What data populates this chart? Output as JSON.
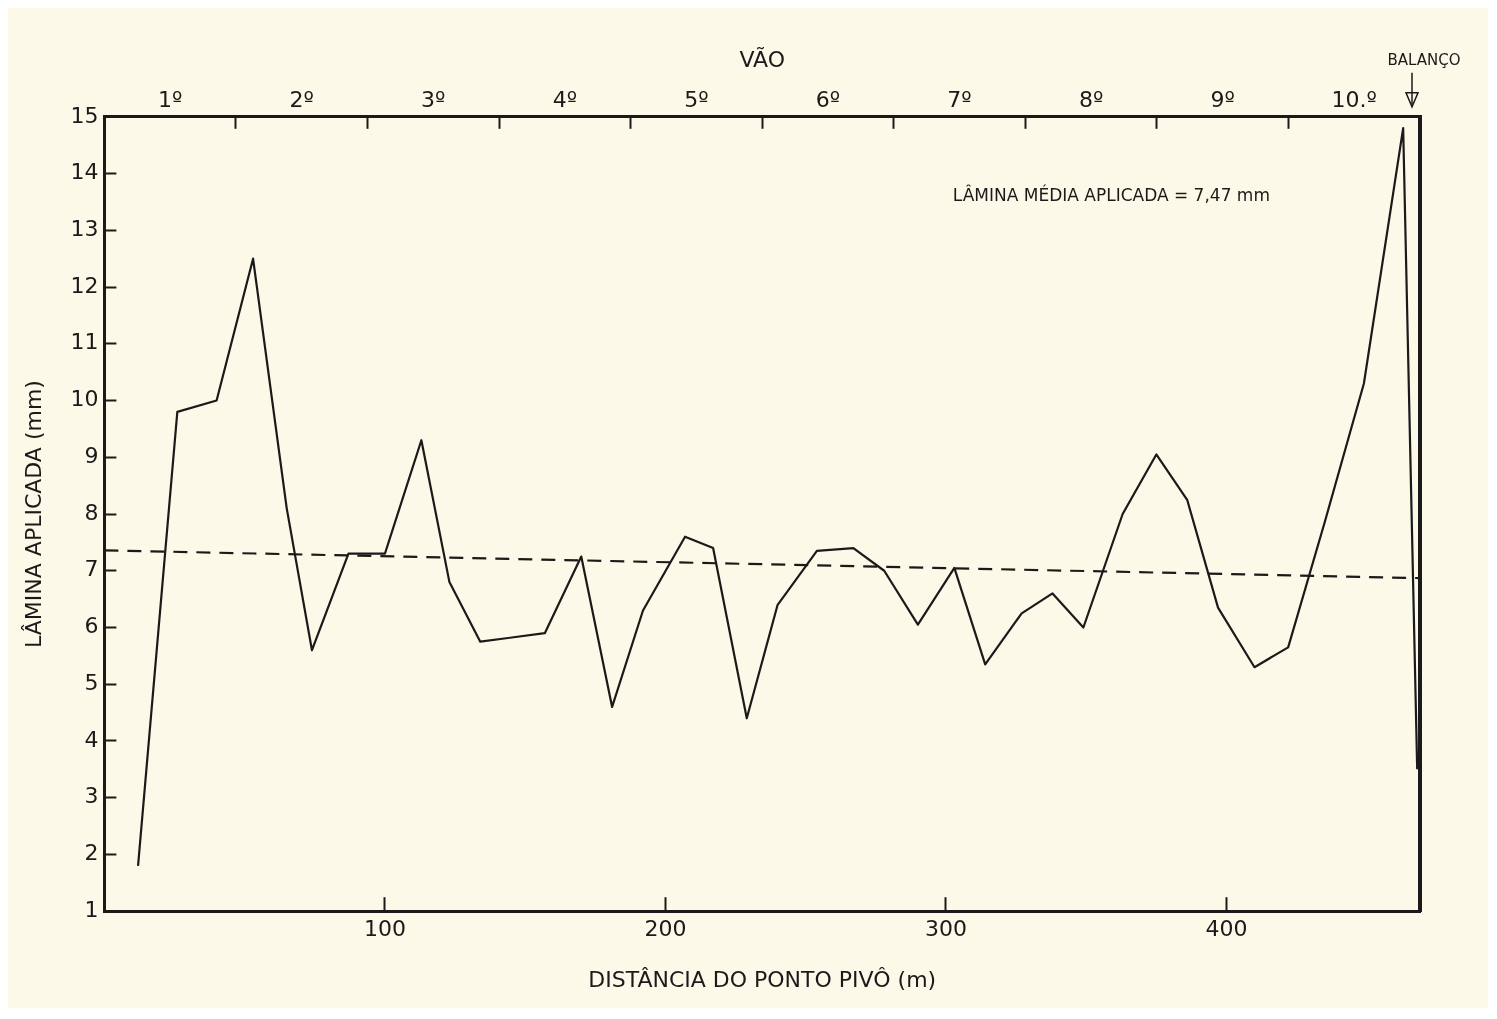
{
  "chart_data": {
    "type": "line",
    "xlabel": "DISTÂNCIA DO PONTO PIVÔ (m)",
    "ylabel": "LÂMINA APLICADA (mm)",
    "x2label": "VÃO",
    "xlim": [
      0,
      469
    ],
    "xticks": [
      100,
      200,
      300,
      400
    ],
    "ylim": [
      1,
      15
    ],
    "yticks": [
      1,
      2,
      3,
      4,
      5,
      6,
      7,
      8,
      9,
      10,
      11,
      12,
      13,
      14,
      15
    ],
    "grid": false,
    "legend": false,
    "marker": "none",
    "series": [
      {
        "color": "#1a1a1a",
        "line_style": "solid",
        "x": [
          12,
          26,
          40,
          53,
          65,
          74,
          87,
          100,
          113,
          123,
          134,
          157,
          170,
          181,
          192,
          207,
          217,
          229,
          240,
          243,
          254,
          267,
          278,
          290,
          303,
          314,
          327,
          338,
          349,
          363,
          375,
          386,
          397,
          410,
          422,
          435,
          449,
          463,
          468
        ],
        "values": [
          1.8,
          9.8,
          10.0,
          12.5,
          8.1,
          5.6,
          7.3,
          7.3,
          9.3,
          6.8,
          5.75,
          5.9,
          7.25,
          4.6,
          6.3,
          7.6,
          7.4,
          4.4,
          6.4,
          6.6,
          7.35,
          7.4,
          7.0,
          6.05,
          7.05,
          5.35,
          6.25,
          6.6,
          6.0,
          8.0,
          9.05,
          8.25,
          6.35,
          5.3,
          5.65,
          7.85,
          10.3,
          14.8,
          3.5
        ]
      },
      {
        "color": "#1a1a1a",
        "line_style": "dashed",
        "x": [
          0,
          469
        ],
        "values": [
          7.36,
          6.87
        ]
      }
    ],
    "annotations": [
      "LÂMINA MÉDIA APLICADA = 7,47 mm",
      "BALANÇO",
      "1º",
      "2º",
      "3º",
      "4º",
      "5º",
      "6º",
      "7º",
      "8º",
      "9º",
      "10.º"
    ]
  }
}
